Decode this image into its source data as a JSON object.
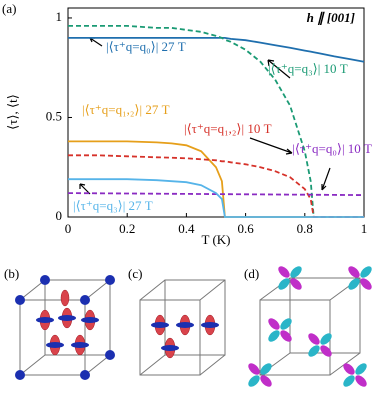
{
  "chart_data": {
    "type": "line",
    "panel_label": "(a)",
    "annotation": "h ∥ [001]",
    "xlabel": "T (K)",
    "ylabel": "⟨τ⟩, ⟨t⟩",
    "x": [
      0,
      0.1,
      0.2,
      0.3,
      0.35,
      0.4,
      0.45,
      0.5,
      0.52,
      0.53,
      0.55,
      0.6,
      0.65,
      0.7,
      0.75,
      0.8,
      0.82,
      0.83,
      0.85,
      0.9,
      0.95,
      1.0
    ],
    "xlim": [
      0,
      1
    ],
    "xticks": [
      0,
      0.2,
      0.4,
      0.6,
      0.8,
      1
    ],
    "ylim": [
      0,
      1.05
    ],
    "yticks": [
      0,
      0.5,
      1
    ],
    "series": [
      {
        "name": "|⟨τ⁺q=q₀⟩| 27 T",
        "color": "#1f6fae",
        "dashed": false,
        "values": [
          0.9,
          0.9,
          0.9,
          0.9,
          0.9,
          0.9,
          0.9,
          0.9,
          0.9,
          0.9,
          0.895,
          0.888,
          0.876,
          0.863,
          0.85,
          0.836,
          0.831,
          0.828,
          0.822,
          0.807,
          0.794,
          0.78
        ]
      },
      {
        "name": "|⟨τ⁺q=q₃⟩| 10 T",
        "color": "#1a9a74",
        "dashed": true,
        "values": [
          0.96,
          0.96,
          0.96,
          0.95,
          0.95,
          0.94,
          0.93,
          0.91,
          0.9,
          0.89,
          0.88,
          0.84,
          0.78,
          0.69,
          0.56,
          0.33,
          0.18,
          0,
          0,
          0,
          0,
          0
        ]
      },
      {
        "name": "|⟨τ⁺q=q₁,₂⟩| 27 T",
        "color": "#e69f1a",
        "dashed": false,
        "values": [
          0.38,
          0.38,
          0.38,
          0.375,
          0.37,
          0.36,
          0.33,
          0.25,
          0.18,
          0,
          0,
          0,
          0,
          0,
          0,
          0,
          0,
          0,
          0,
          0,
          0,
          0
        ]
      },
      {
        "name": "|⟨τ⁺q=q₁,₂⟩| 10 T",
        "color": "#d6322a",
        "dashed": true,
        "values": [
          0.31,
          0.31,
          0.305,
          0.3,
          0.298,
          0.295,
          0.29,
          0.285,
          0.28,
          0.28,
          0.275,
          0.265,
          0.25,
          0.23,
          0.2,
          0.14,
          0.09,
          0,
          0,
          0,
          0,
          0
        ]
      },
      {
        "name": "|⟨τ⁺q=q₀⟩| 10 T",
        "color": "#8a2bc2",
        "dashed": true,
        "values": [
          0.12,
          0.119,
          0.118,
          0.117,
          0.1165,
          0.116,
          0.1155,
          0.115,
          0.1148,
          0.1147,
          0.1145,
          0.114,
          0.1135,
          0.113,
          0.1125,
          0.112,
          0.1118,
          0.1117,
          0.1115,
          0.111,
          0.1105,
          0.11
        ]
      },
      {
        "name": "|⟨τ⁺q=q₃⟩| 27 T",
        "color": "#56b4e9",
        "dashed": false,
        "values": [
          0.19,
          0.19,
          0.19,
          0.185,
          0.18,
          0.175,
          0.16,
          0.12,
          0.09,
          0,
          0,
          0,
          0,
          0,
          0,
          0,
          0,
          0,
          0,
          0,
          0,
          0
        ]
      }
    ]
  },
  "panels": [
    "(b)",
    "(c)",
    "(d)"
  ]
}
